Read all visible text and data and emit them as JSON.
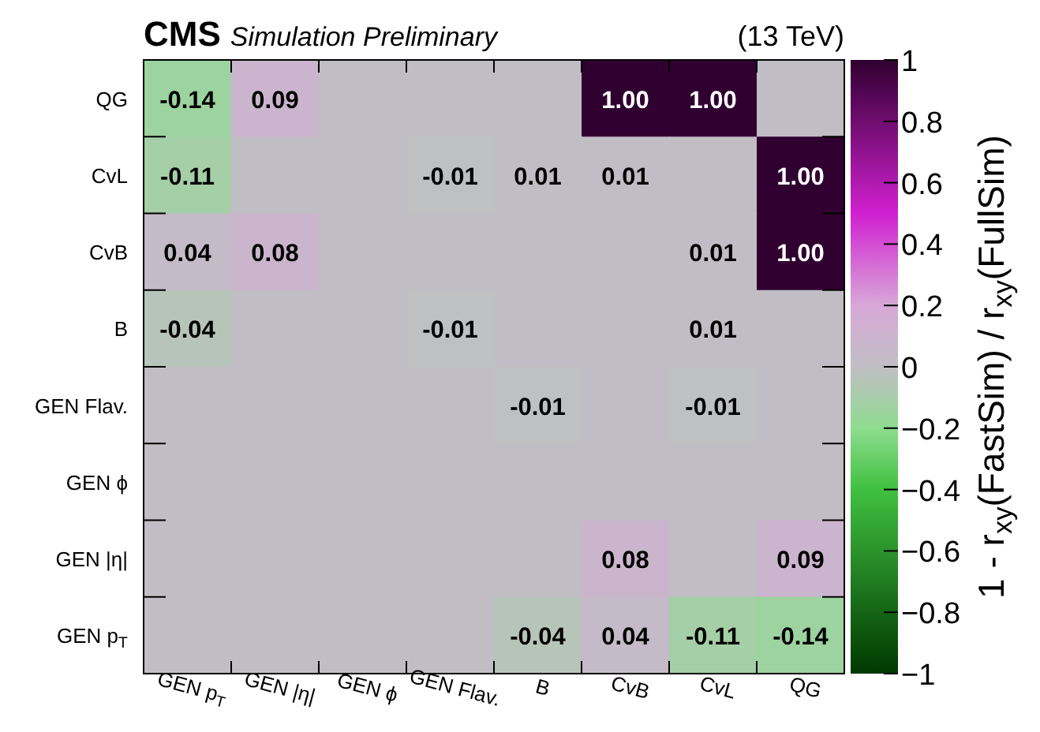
{
  "chart_data": {
    "type": "heatmap",
    "title": "CMS",
    "subtitle": "Simulation Preliminary",
    "annotations": [
      "(13 TeV)"
    ],
    "categories": [
      "GEN p$_{T}$",
      "GEN |η|",
      "GEN ϕ",
      "GEN Flav.",
      "B",
      "CvB",
      "CvL",
      "QG"
    ],
    "y_categories": [
      "QG",
      "CvL",
      "CvB",
      "B",
      "GEN Flav.",
      "GEN ϕ",
      "GEN |η|",
      "GEN p$_{T}$"
    ],
    "cells": [
      [
        -0.14,
        0.09,
        0,
        0,
        0,
        1.0,
        1.0,
        0
      ],
      [
        -0.11,
        0,
        0,
        -0.01,
        0.01,
        0.01,
        0,
        1.0
      ],
      [
        0.04,
        0.08,
        0,
        0,
        0,
        0,
        0.01,
        1.0
      ],
      [
        -0.04,
        0,
        0,
        -0.01,
        0,
        0,
        0.01,
        0
      ],
      [
        0,
        0,
        0,
        0,
        -0.01,
        0,
        -0.01,
        0
      ],
      [
        0,
        0,
        0,
        0,
        0,
        0,
        0,
        0
      ],
      [
        0,
        0,
        0,
        0,
        0,
        0.08,
        0,
        0.09
      ],
      [
        0,
        0,
        0,
        0,
        -0.04,
        0.04,
        -0.11,
        -0.14
      ]
    ],
    "cell_labels": [
      [
        "-0.14",
        "0.09",
        null,
        null,
        null,
        "1.00",
        "1.00",
        null
      ],
      [
        "-0.11",
        null,
        null,
        "-0.01",
        "0.01",
        "0.01",
        null,
        "1.00"
      ],
      [
        "0.04",
        "0.08",
        null,
        null,
        null,
        null,
        "0.01",
        "1.00"
      ],
      [
        "-0.04",
        null,
        null,
        "-0.01",
        null,
        null,
        "0.01",
        null
      ],
      [
        null,
        null,
        null,
        null,
        "-0.01",
        null,
        "-0.01",
        null
      ],
      [
        null,
        null,
        null,
        null,
        null,
        null,
        null,
        null
      ],
      [
        null,
        null,
        null,
        null,
        null,
        "0.08",
        null,
        "0.09"
      ],
      [
        null,
        null,
        null,
        null,
        "-0.04",
        "0.04",
        "-0.11",
        "-0.14"
      ]
    ],
    "clabel": "1 - r$_{xy}$(FastSim) / r$_{xy}$(FullSim)",
    "clim": [
      -1,
      1
    ],
    "cticks": [
      -1,
      -0.8,
      -0.6,
      -0.4,
      -0.2,
      0,
      0.2,
      0.4,
      0.6,
      0.8,
      1
    ]
  }
}
